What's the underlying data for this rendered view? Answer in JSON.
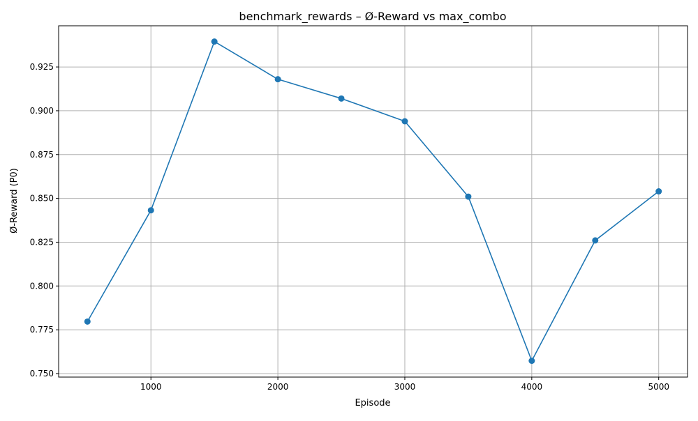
{
  "chart_data": {
    "type": "line",
    "title": "benchmark_rewards – Ø-Reward vs max_combo",
    "xlabel": "Episode",
    "ylabel": "Ø-Reward (P0)",
    "x": [
      500,
      1000,
      1500,
      2000,
      2500,
      3000,
      3500,
      4000,
      4500,
      5000
    ],
    "series": [
      {
        "values": [
          0.7797,
          0.8432,
          0.9395,
          0.918,
          0.907,
          0.894,
          0.851,
          0.7573,
          0.826,
          0.854
        ]
      }
    ],
    "xlim": [
      273,
      5227
    ],
    "ylim": [
      0.748,
      0.9485
    ],
    "xticks": [
      1000,
      2000,
      3000,
      4000,
      5000
    ],
    "xtick_labels": [
      "1000",
      "2000",
      "3000",
      "4000",
      "5000"
    ],
    "yticks": [
      0.75,
      0.775,
      0.8,
      0.825,
      0.85,
      0.875,
      0.9,
      0.925
    ],
    "ytick_labels": [
      "0.750",
      "0.775",
      "0.800",
      "0.825",
      "0.850",
      "0.875",
      "0.900",
      "0.925"
    ],
    "grid": true,
    "marker": "circle",
    "colors": {
      "line": "#1f77b4",
      "grid": "#b0b0b0",
      "axes": "#000000"
    }
  }
}
